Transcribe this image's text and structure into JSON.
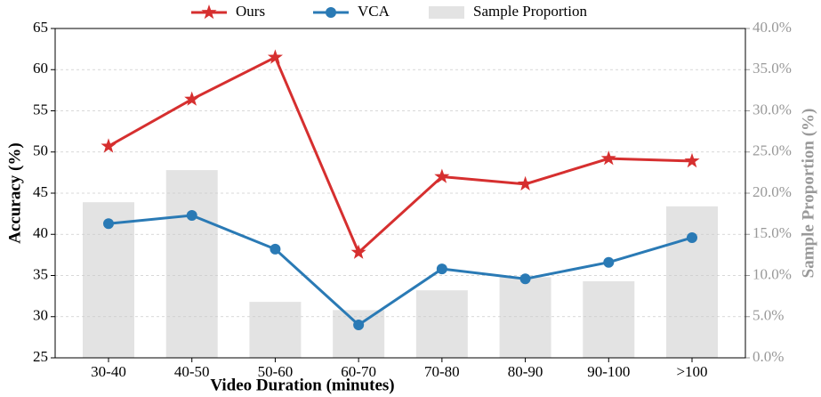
{
  "chart_data": {
    "type": "line",
    "xlabel": "Video Duration (minutes)",
    "ylabel": "Accuracy (%)",
    "y2label": "Sample Proportion (%)",
    "categories": [
      "30-40",
      "40-50",
      "50-60",
      "60-70",
      "70-80",
      "80-90",
      "90-100",
      ">100"
    ],
    "series": [
      {
        "name": "Ours",
        "color": "#d62f2f",
        "values": [
          50.7,
          56.4,
          61.5,
          37.8,
          47.0,
          46.1,
          49.2,
          48.9
        ]
      },
      {
        "name": "VCA",
        "color": "#2a7ab5",
        "values": [
          41.3,
          42.3,
          38.2,
          29.0,
          35.8,
          34.6,
          36.6,
          39.6
        ]
      },
      {
        "name": "Sample Proportion",
        "color": "#e3e3e3",
        "axis": "y2",
        "kind": "bar",
        "values": [
          18.9,
          22.8,
          6.8,
          5.8,
          8.2,
          9.8,
          9.3,
          18.4
        ]
      }
    ],
    "ylim": [
      25,
      65
    ],
    "yticks": [
      25,
      30,
      35,
      40,
      45,
      50,
      55,
      60,
      65
    ],
    "y2lim": [
      0,
      40
    ],
    "y2ticks": [
      {
        "value": 0,
        "label": "0.0%"
      },
      {
        "value": 5,
        "label": "5.0%"
      },
      {
        "value": 10,
        "label": "10.0%"
      },
      {
        "value": 15,
        "label": "15.0%"
      },
      {
        "value": 20,
        "label": "20.0%"
      },
      {
        "value": 25,
        "label": "25.0%"
      },
      {
        "value": 30,
        "label": "30.0%"
      },
      {
        "value": 35,
        "label": "35.0%"
      },
      {
        "value": 40,
        "label": "40.0%"
      }
    ],
    "grid": true,
    "legend": "top"
  }
}
